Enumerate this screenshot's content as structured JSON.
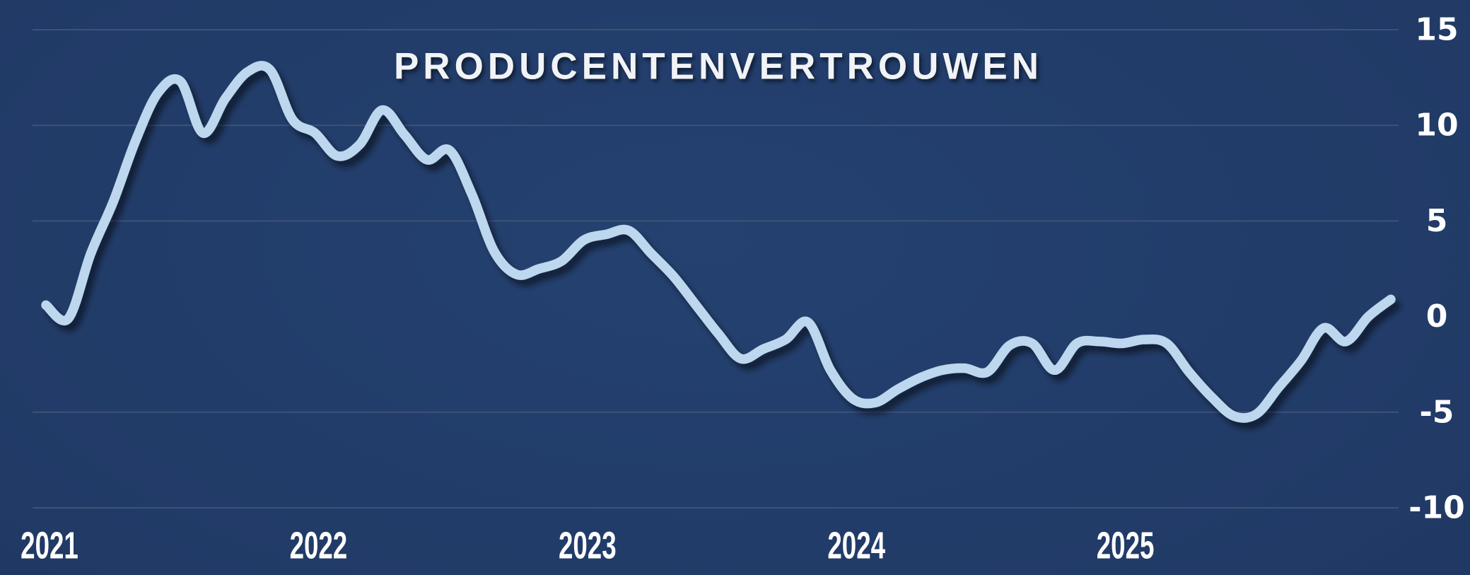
{
  "title": "PRODUCENTENVERTROUWEN",
  "colors": {
    "background_center": "#244170",
    "background_edge": "#172946",
    "line": "#BDD7EE",
    "zero_line": "#FF0000",
    "grid": "#3D5278",
    "axis_text": "#FFFFFF",
    "title_text": "#F1F3F6"
  },
  "chart_data": {
    "type": "line",
    "title": "PRODUCENTENVERTROUWEN",
    "xlabel": "",
    "ylabel": "",
    "frequency": "monthly",
    "start": "2021-01",
    "end": "2026-01",
    "ylim": [
      -10,
      15
    ],
    "grid": "horizontal",
    "legend": "none",
    "zero_line": 0,
    "y_ticks": [
      15,
      10,
      5,
      0,
      -5,
      -10
    ],
    "y_tick_labels": [
      "15",
      "10",
      "5",
      "0",
      "-5",
      "-10"
    ],
    "x_tick_labels": [
      "2021",
      "2022",
      "2023",
      "2024",
      "2025"
    ],
    "x_tick_months": [
      0,
      12,
      24,
      36,
      48
    ],
    "series": [
      {
        "name": "Producentenvertrouwen",
        "values": [
          0.6,
          -0.1,
          3.3,
          6.0,
          9.2,
          11.7,
          12.3,
          9.6,
          11.4,
          12.8,
          12.9,
          10.3,
          9.6,
          8.4,
          9.0,
          10.8,
          9.5,
          8.2,
          8.7,
          6.4,
          3.4,
          2.2,
          2.5,
          2.9,
          4.0,
          4.3,
          4.5,
          3.3,
          2.1,
          0.6,
          -0.9,
          -2.2,
          -1.7,
          -1.2,
          -0.3,
          -2.8,
          -4.3,
          -4.5,
          -3.8,
          -3.2,
          -2.8,
          -2.7,
          -2.9,
          -1.5,
          -1.4,
          -2.8,
          -1.4,
          -1.3,
          -1.4,
          -1.2,
          -1.4,
          -2.9,
          -4.2,
          -5.2,
          -5.1,
          -3.7,
          -2.3,
          -0.6,
          -1.3,
          0.0,
          0.9
        ]
      }
    ]
  }
}
